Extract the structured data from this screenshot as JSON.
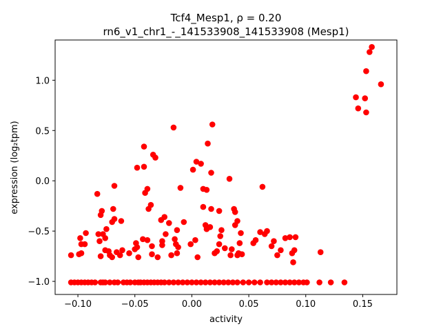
{
  "chart_data": {
    "type": "scatter",
    "title_line1": "Tcf4_Mesp1, ρ = 0.20",
    "title_line2": "rn6_v1_chr1_-_141533908_141533908 (Mesp1)",
    "xlabel": "activity",
    "ylabel": "expression (log₂tpm)",
    "xlim": [
      -0.12,
      0.18
    ],
    "ylim": [
      -1.13,
      1.4
    ],
    "x_ticks": [
      -0.1,
      -0.05,
      0.0,
      0.05,
      0.1,
      0.15
    ],
    "x_tick_labels": [
      "−0.10",
      "−0.05",
      "0.00",
      "0.05",
      "0.10",
      "0.15"
    ],
    "y_ticks": [
      -1.0,
      -0.5,
      0.0,
      0.5,
      1.0
    ],
    "y_tick_labels": [
      "−1.0",
      "−0.5",
      "0.0",
      "0.5",
      "1.0"
    ],
    "marker_color": "#ff0000",
    "points": [
      [
        -0.106,
        -1.01
      ],
      [
        -0.103,
        -1.01
      ],
      [
        -0.1,
        -1.01
      ],
      [
        -0.097,
        -1.01
      ],
      [
        -0.094,
        -1.01
      ],
      [
        -0.091,
        -1.01
      ],
      [
        -0.088,
        -1.01
      ],
      [
        -0.085,
        -1.01
      ],
      [
        -0.08,
        -1.01
      ],
      [
        -0.078,
        -1.01
      ],
      [
        -0.076,
        -1.01
      ],
      [
        -0.072,
        -1.01
      ],
      [
        -0.068,
        -1.01
      ],
      [
        -0.065,
        -1.01
      ],
      [
        -0.06,
        -1.01
      ],
      [
        -0.057,
        -1.01
      ],
      [
        -0.054,
        -1.01
      ],
      [
        -0.05,
        -1.01
      ],
      [
        -0.047,
        -1.01
      ],
      [
        -0.045,
        -1.01
      ],
      [
        -0.042,
        -1.01
      ],
      [
        -0.039,
        -1.01
      ],
      [
        -0.036,
        -1.01
      ],
      [
        -0.033,
        -1.01
      ],
      [
        -0.03,
        -1.01
      ],
      [
        -0.027,
        -1.01
      ],
      [
        -0.024,
        -1.01
      ],
      [
        -0.02,
        -1.01
      ],
      [
        -0.016,
        -1.01
      ],
      [
        -0.012,
        -1.01
      ],
      [
        -0.008,
        -1.01
      ],
      [
        -0.004,
        -1.01
      ],
      [
        0.0,
        -1.01
      ],
      [
        0.004,
        -1.01
      ],
      [
        0.008,
        -1.01
      ],
      [
        0.012,
        -1.01
      ],
      [
        0.016,
        -1.01
      ],
      [
        0.02,
        -1.01
      ],
      [
        0.024,
        -1.01
      ],
      [
        0.028,
        -1.01
      ],
      [
        0.032,
        -1.01
      ],
      [
        0.036,
        -1.01
      ],
      [
        0.04,
        -1.01
      ],
      [
        0.045,
        -1.01
      ],
      [
        0.05,
        -1.01
      ],
      [
        0.055,
        -1.01
      ],
      [
        0.06,
        -1.01
      ],
      [
        0.066,
        -1.01
      ],
      [
        0.07,
        -1.01
      ],
      [
        0.074,
        -1.01
      ],
      [
        0.078,
        -1.01
      ],
      [
        0.082,
        -1.01
      ],
      [
        0.086,
        -1.01
      ],
      [
        0.09,
        -1.01
      ],
      [
        0.094,
        -1.01
      ],
      [
        0.098,
        -1.01
      ],
      [
        0.101,
        -1.01
      ],
      [
        0.112,
        -1.01
      ],
      [
        0.122,
        -1.01
      ],
      [
        0.134,
        -1.01
      ],
      [
        -0.106,
        -0.74
      ],
      [
        -0.099,
        -0.73
      ],
      [
        -0.097,
        -0.72
      ],
      [
        -0.098,
        -0.57
      ],
      [
        -0.097,
        -0.63
      ],
      [
        -0.094,
        -0.63
      ],
      [
        -0.093,
        -0.52
      ],
      [
        -0.083,
        -0.13
      ],
      [
        -0.082,
        -0.53
      ],
      [
        -0.081,
        -0.6
      ],
      [
        -0.08,
        -0.34
      ],
      [
        -0.079,
        -0.3
      ],
      [
        -0.078,
        -0.53
      ],
      [
        -0.08,
        -0.75
      ],
      [
        -0.076,
        -0.69
      ],
      [
        -0.076,
        -0.57
      ],
      [
        -0.075,
        -0.48
      ],
      [
        -0.073,
        -0.7
      ],
      [
        -0.072,
        -0.74
      ],
      [
        -0.07,
        -0.76
      ],
      [
        -0.07,
        -0.41
      ],
      [
        -0.069,
        -0.28
      ],
      [
        -0.068,
        -0.38
      ],
      [
        -0.068,
        -0.05
      ],
      [
        -0.066,
        -0.71
      ],
      [
        -0.063,
        -0.74
      ],
      [
        -0.062,
        -0.4
      ],
      [
        -0.061,
        -0.69
      ],
      [
        -0.055,
        -0.72
      ],
      [
        -0.05,
        -0.68
      ],
      [
        -0.049,
        -0.62
      ],
      [
        -0.048,
        -0.66
      ],
      [
        -0.048,
        0.13
      ],
      [
        -0.047,
        -0.76
      ],
      [
        -0.043,
        -0.58
      ],
      [
        -0.042,
        0.34
      ],
      [
        -0.042,
        0.14
      ],
      [
        -0.041,
        -0.12
      ],
      [
        -0.039,
        -0.08
      ],
      [
        -0.039,
        -0.59
      ],
      [
        -0.038,
        -0.28
      ],
      [
        -0.036,
        -0.24
      ],
      [
        -0.035,
        -0.73
      ],
      [
        -0.035,
        -0.65
      ],
      [
        -0.034,
        0.26
      ],
      [
        -0.032,
        0.23
      ],
      [
        -0.03,
        -0.76
      ],
      [
        -0.027,
        -0.39
      ],
      [
        -0.026,
        -0.6
      ],
      [
        -0.026,
        -0.64
      ],
      [
        -0.024,
        -0.36
      ],
      [
        -0.023,
        -0.53
      ],
      [
        -0.02,
        -0.42
      ],
      [
        -0.018,
        -0.74
      ],
      [
        -0.016,
        0.53
      ],
      [
        -0.015,
        -0.58
      ],
      [
        -0.014,
        -0.63
      ],
      [
        -0.013,
        -0.49
      ],
      [
        -0.013,
        -0.72
      ],
      [
        -0.012,
        -0.66
      ],
      [
        -0.01,
        -0.07
      ],
      [
        -0.007,
        -0.41
      ],
      [
        -0.001,
        -0.63
      ],
      [
        0.001,
        0.11
      ],
      [
        0.003,
        -0.59
      ],
      [
        0.004,
        0.19
      ],
      [
        0.005,
        -0.76
      ],
      [
        0.008,
        0.17
      ],
      [
        0.01,
        -0.26
      ],
      [
        0.01,
        -0.08
      ],
      [
        0.012,
        -0.44
      ],
      [
        0.013,
        -0.09
      ],
      [
        0.013,
        -0.48
      ],
      [
        0.014,
        0.37
      ],
      [
        0.016,
        -0.46
      ],
      [
        0.017,
        -0.28
      ],
      [
        0.017,
        0.08
      ],
      [
        0.018,
        0.56
      ],
      [
        0.02,
        -0.72
      ],
      [
        0.022,
        -0.7
      ],
      [
        0.024,
        -0.3
      ],
      [
        0.024,
        -0.63
      ],
      [
        0.025,
        -0.55
      ],
      [
        0.026,
        -0.49
      ],
      [
        0.029,
        -0.67
      ],
      [
        0.033,
        0.02
      ],
      [
        0.034,
        -0.74
      ],
      [
        0.035,
        -0.68
      ],
      [
        0.037,
        -0.28
      ],
      [
        0.038,
        -0.31
      ],
      [
        0.038,
        -0.44
      ],
      [
        0.04,
        -0.74
      ],
      [
        0.04,
        -0.4
      ],
      [
        0.041,
        -0.72
      ],
      [
        0.042,
        -0.62
      ],
      [
        0.043,
        -0.52
      ],
      [
        0.044,
        -0.73
      ],
      [
        0.054,
        -0.62
      ],
      [
        0.056,
        -0.59
      ],
      [
        0.06,
        -0.51
      ],
      [
        0.062,
        -0.06
      ],
      [
        0.064,
        -0.53
      ],
      [
        0.066,
        -0.5
      ],
      [
        0.07,
        -0.65
      ],
      [
        0.072,
        -0.6
      ],
      [
        0.075,
        -0.74
      ],
      [
        0.078,
        -0.69
      ],
      [
        0.082,
        -0.57
      ],
      [
        0.086,
        -0.56
      ],
      [
        0.088,
        -0.72
      ],
      [
        0.089,
        -0.81
      ],
      [
        0.09,
        -0.69
      ],
      [
        0.091,
        -0.56
      ],
      [
        0.113,
        -0.71
      ],
      [
        0.144,
        0.83
      ],
      [
        0.146,
        0.72
      ],
      [
        0.152,
        0.82
      ],
      [
        0.153,
        1.09
      ],
      [
        0.153,
        0.68
      ],
      [
        0.156,
        1.28
      ],
      [
        0.158,
        1.33
      ],
      [
        0.166,
        0.96
      ]
    ]
  }
}
